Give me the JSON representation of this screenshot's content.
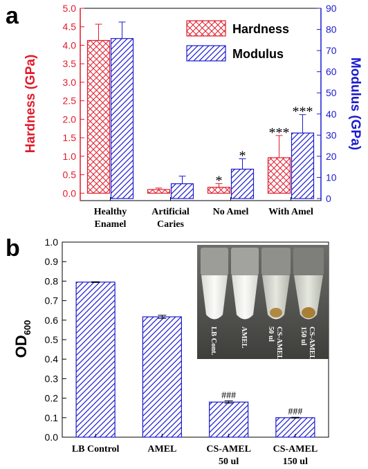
{
  "panels": {
    "a": "a",
    "b": "b"
  },
  "chart_data": [
    {
      "type": "bar",
      "panel": "a",
      "categories": [
        "Healthy\nEnamel",
        "Artificial\nCaries",
        "No Amel",
        "With Amel"
      ],
      "series": [
        {
          "name": "Hardness",
          "axis": "left",
          "color": "#e0192a",
          "pattern": "crosshatch",
          "values": [
            4.13,
            0.1,
            0.16,
            0.96
          ],
          "errors": [
            0.44,
            0.04,
            0.1,
            0.6
          ]
        },
        {
          "name": "Modulus",
          "axis": "right",
          "color": "#1a1ad0",
          "pattern": "diagonal",
          "values": [
            75.7,
            7.0,
            13.9,
            31.0
          ],
          "errors": [
            7.8,
            3.6,
            4.9,
            8.7
          ]
        }
      ],
      "significance": {
        "Hardness": [
          "",
          "",
          "*",
          "***"
        ],
        "Modulus": [
          "",
          "",
          "*",
          "***"
        ]
      },
      "ylabel": "Hardness (GPa)",
      "ylabel_right": "Modulus (GPa)",
      "ylim": [
        -0.2,
        5.0
      ],
      "ylim_right": [
        0,
        90
      ],
      "yticks": [
        "0.0",
        "0.5",
        "1.0",
        "1.5",
        "2.0",
        "2.5",
        "3.0",
        "3.5",
        "4.0",
        "4.5",
        "5.0"
      ],
      "yticks_right": [
        "0",
        "10",
        "20",
        "30",
        "40",
        "50",
        "60",
        "70",
        "80",
        "90"
      ],
      "legend": {
        "placement": "top-right",
        "entries": [
          "Hardness",
          "Modulus"
        ]
      },
      "grid": false
    },
    {
      "type": "bar",
      "panel": "b",
      "categories": [
        "LB Control",
        "AMEL",
        "CS-AMEL\n50 ul",
        "CS-AMEL\n150 ul"
      ],
      "series": [
        {
          "color": "#1a1ad0",
          "pattern": "diagonal",
          "values": [
            0.795,
            0.617,
            0.18,
            0.1
          ],
          "errors": [
            0.002,
            0.008,
            0.006,
            0.002
          ]
        }
      ],
      "significance": [
        "",
        "",
        "###",
        "###"
      ],
      "ylabel": "OD",
      "ylabel_sub": "600",
      "ylim": [
        0.0,
        1.0
      ],
      "yticks": [
        "0.0",
        "0.1",
        "0.2",
        "0.3",
        "0.4",
        "0.5",
        "0.6",
        "0.7",
        "0.8",
        "0.9",
        "1.0"
      ],
      "grid": false,
      "inset_photo_labels": [
        "LB Cont.",
        "AMEL",
        "CS-AMEL\n50 ul",
        "CS-AMEL\n150 ul"
      ]
    }
  ]
}
